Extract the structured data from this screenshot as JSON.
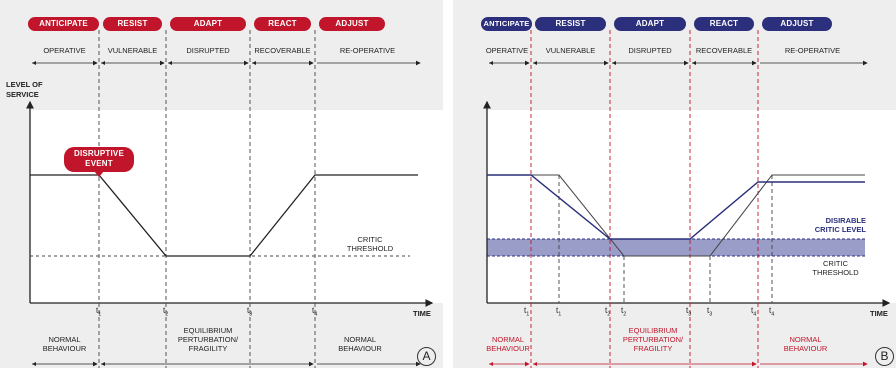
{
  "phases": [
    "ANTICIPATE",
    "RESIST",
    "ADAPT",
    "REACT",
    "ADJUST"
  ],
  "states": [
    "OPERATIVE",
    "VULNERABLE",
    "DISRUPTED",
    "RECOVERABLE",
    "RE-OPERATIVE"
  ],
  "axis": {
    "y_line1": "LEVEL OF",
    "y_line2": "SERVICE",
    "x": "TIME"
  },
  "event": {
    "line1": "DISRUPTIVE",
    "line2": "EVENT"
  },
  "threshold": {
    "line1": "CRITIC",
    "line2": "THRESHOLD"
  },
  "desirable": {
    "line1": "DISIRABLE",
    "line2": "CRITIC LEVEL"
  },
  "t_label": "t",
  "ticks_a": [
    "1",
    "2",
    "3",
    "4"
  ],
  "ticks_b_red": [
    "1",
    "2",
    "3",
    "4"
  ],
  "ticks_b_black": [
    "1",
    "2",
    "3",
    "4"
  ],
  "behaviour": {
    "normal_1": "NORMAL",
    "normal_2": "BEHAVIOUR",
    "eq_1": "EQUILIBRIUM",
    "eq_2": "PERTURBATION/",
    "eq_3": "FRAGILITY"
  },
  "panel_a_label": "A",
  "panel_b_label": "B",
  "colors": {
    "red": "#c0152a",
    "blue": "#2b2f7c",
    "band": "#9a9dc8"
  }
}
